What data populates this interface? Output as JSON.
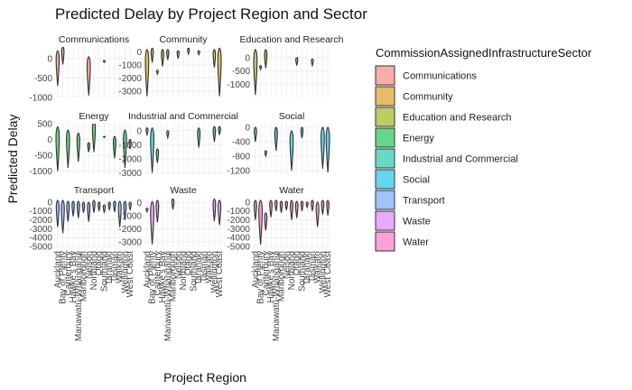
{
  "chart_data": {
    "type": "violin",
    "title": "Predicted Delay by Project Region and Sector",
    "xlabel": "Project Region",
    "ylabel": "Predicted Delay",
    "categories": [
      "Auckland",
      "Bay of Plenty",
      "Canterbury",
      "Hawke's Bay",
      "Manawatū-Whanganui",
      "Marlborough",
      "Nelson",
      "Northland",
      "Otago",
      "Southland",
      "Taranaki",
      "Tasman",
      "Waikato",
      "Wellington",
      "West Coast"
    ],
    "x_ticks_bottom": [
      "Auckland",
      "Bay of Plenty",
      "Canterbury",
      "Hawke's Bay",
      "Manawatū-Whanganui",
      "Marlborough",
      "Nelson",
      "Northland",
      "Otago",
      "Southland",
      "Taranaki",
      "Tasman",
      "Waikato",
      "Wellington",
      "West Coast"
    ],
    "legend": {
      "title": "CommissionAssignedInfrastructureSector",
      "entries": [
        {
          "name": "Communications",
          "color": "#F8766D"
        },
        {
          "name": "Community",
          "color": "#D39200"
        },
        {
          "name": "Education and Research",
          "color": "#93AA00"
        },
        {
          "name": "Energy",
          "color": "#00BA38"
        },
        {
          "name": "Industrial and Commercial",
          "color": "#00C19F"
        },
        {
          "name": "Social",
          "color": "#00B9E3"
        },
        {
          "name": "Transport",
          "color": "#619CFF"
        },
        {
          "name": "Waste",
          "color": "#DB72FB"
        },
        {
          "name": "Water",
          "color": "#FF61C3"
        }
      ]
    },
    "facets": [
      {
        "strip": "Communications",
        "ylim": [
          -1000,
          300
        ],
        "yticks": [
          0,
          -500,
          -1000
        ],
        "violins": [
          {
            "x": 1,
            "max": 200,
            "min": -700
          },
          {
            "x": 2,
            "max": 300,
            "min": -150
          },
          {
            "x": 7,
            "max": 50,
            "min": -950
          },
          {
            "x": 10,
            "max": -50,
            "min": -100
          }
        ]
      },
      {
        "strip": "Community",
        "ylim": [
          -3500,
          400
        ],
        "yticks": [
          0,
          -1000,
          -2000,
          -3000
        ],
        "violins": [
          {
            "x": 1,
            "max": 200,
            "min": -3400
          },
          {
            "x": 2,
            "max": 300,
            "min": -800
          },
          {
            "x": 3,
            "max": -1400,
            "min": -1700
          },
          {
            "x": 4,
            "max": 200,
            "min": -1100
          },
          {
            "x": 5,
            "max": 200,
            "min": -600
          },
          {
            "x": 7,
            "max": 100,
            "min": -500
          },
          {
            "x": 9,
            "max": 300,
            "min": -150
          },
          {
            "x": 11,
            "max": 100,
            "min": -200
          },
          {
            "x": 14,
            "max": 200,
            "min": -1200
          },
          {
            "x": 15,
            "max": 300,
            "min": -3400
          }
        ]
      },
      {
        "strip": "Education and Research",
        "ylim": [
          -1500,
          400
        ],
        "yticks": [
          0,
          -500,
          -1000
        ],
        "violins": [
          {
            "x": 1,
            "max": 300,
            "min": -1400
          },
          {
            "x": 2,
            "max": -300,
            "min": -450
          },
          {
            "x": 3,
            "max": 300,
            "min": -400
          },
          {
            "x": 9,
            "max": 0,
            "min": -300
          },
          {
            "x": 12,
            "max": -50,
            "min": -300
          }
        ]
      },
      {
        "strip": "Energy",
        "ylim": [
          -1100,
          500
        ],
        "yticks": [
          500,
          0,
          -500,
          -1000
        ],
        "violins": [
          {
            "x": 1,
            "max": 400,
            "min": -1000
          },
          {
            "x": 3,
            "max": 300,
            "min": -900
          },
          {
            "x": 5,
            "max": 200,
            "min": -700
          },
          {
            "x": 7,
            "max": -100,
            "min": -400
          },
          {
            "x": 8,
            "max": 600,
            "min": -400
          },
          {
            "x": 10,
            "max": 100,
            "min": 100
          },
          {
            "x": 12,
            "max": 100,
            "min": -600
          },
          {
            "x": 14,
            "max": 300,
            "min": -900
          },
          {
            "x": 15,
            "max": 0,
            "min": -300
          }
        ]
      },
      {
        "strip": "Industrial and Commercial",
        "ylim": [
          -3100,
          500
        ],
        "yticks": [
          0,
          -1000,
          -2000,
          -3000
        ],
        "violins": [
          {
            "x": 1,
            "max": 200,
            "min": -300
          },
          {
            "x": 2,
            "max": 200,
            "min": -3000
          },
          {
            "x": 3,
            "max": -1300,
            "min": -2300
          },
          {
            "x": 5,
            "max": 0,
            "min": -500
          },
          {
            "x": 11,
            "max": 200,
            "min": -1200
          },
          {
            "x": 14,
            "max": 300,
            "min": -800
          },
          {
            "x": 15,
            "max": 300,
            "min": -300
          }
        ]
      },
      {
        "strip": "Social",
        "ylim": [
          -1300,
          100
        ],
        "yticks": [
          0,
          -400,
          -800,
          -1200
        ],
        "violins": [
          {
            "x": 1,
            "max": 0,
            "min": -400
          },
          {
            "x": 3,
            "max": -650,
            "min": -800
          },
          {
            "x": 5,
            "max": 0,
            "min": -650
          },
          {
            "x": 8,
            "max": -100,
            "min": -1200
          },
          {
            "x": 10,
            "max": 0,
            "min": -300
          },
          {
            "x": 14,
            "max": 0,
            "min": -1150
          },
          {
            "x": 15,
            "max": 0,
            "min": -1250
          }
        ]
      },
      {
        "strip": "Transport",
        "ylim": [
          -5200,
          500
        ],
        "yticks": [
          0,
          -1000,
          -2000,
          -3000,
          -4000,
          -5000
        ],
        "violins": [
          {
            "x": 1,
            "max": 200,
            "min": -2800
          },
          {
            "x": 2,
            "max": 200,
            "min": -3500
          },
          {
            "x": 3,
            "max": 100,
            "min": -2200
          },
          {
            "x": 4,
            "max": 100,
            "min": -1600
          },
          {
            "x": 5,
            "max": 100,
            "min": -1800
          },
          {
            "x": 6,
            "max": 0,
            "min": -1200
          },
          {
            "x": 7,
            "max": 0,
            "min": -2200
          },
          {
            "x": 8,
            "max": 200,
            "min": -1200
          },
          {
            "x": 9,
            "max": 0,
            "min": -1000
          },
          {
            "x": 10,
            "max": -300,
            "min": -1200
          },
          {
            "x": 11,
            "max": 0,
            "min": -900
          },
          {
            "x": 12,
            "max": 100,
            "min": -1100
          },
          {
            "x": 13,
            "max": 100,
            "min": -2800
          },
          {
            "x": 14,
            "max": 100,
            "min": -2000
          },
          {
            "x": 15,
            "max": 0,
            "min": -900
          }
        ]
      },
      {
        "strip": "Waste",
        "ylim": [
          -3500,
          400
        ],
        "yticks": [
          0,
          -1000,
          -2000,
          -3000
        ],
        "violins": [
          {
            "x": 1,
            "max": -400,
            "min": -700
          },
          {
            "x": 2,
            "max": 100,
            "min": -3200
          },
          {
            "x": 3,
            "max": 200,
            "min": -1500
          },
          {
            "x": 6,
            "max": 300,
            "min": -500
          },
          {
            "x": 14,
            "max": 300,
            "min": -1400
          },
          {
            "x": 15,
            "max": 200,
            "min": -1700
          }
        ]
      },
      {
        "strip": "Water",
        "ylim": [
          -5200,
          500
        ],
        "yticks": [
          0,
          -1000,
          -2000,
          -3000,
          -4000,
          -5000
        ],
        "violins": [
          {
            "x": 1,
            "max": 200,
            "min": -2000
          },
          {
            "x": 2,
            "max": 200,
            "min": -4800
          },
          {
            "x": 3,
            "max": -1200,
            "min": -3200
          },
          {
            "x": 4,
            "max": 200,
            "min": -1700
          },
          {
            "x": 5,
            "max": 200,
            "min": -1000
          },
          {
            "x": 6,
            "max": 100,
            "min": -1200
          },
          {
            "x": 7,
            "max": 100,
            "min": -900
          },
          {
            "x": 8,
            "max": 200,
            "min": -2000
          },
          {
            "x": 9,
            "max": 100,
            "min": -1800
          },
          {
            "x": 10,
            "max": 100,
            "min": -1000
          },
          {
            "x": 11,
            "max": 0,
            "min": -600
          },
          {
            "x": 12,
            "max": 200,
            "min": -1000
          },
          {
            "x": 13,
            "max": 0,
            "min": -2800
          },
          {
            "x": 14,
            "max": 200,
            "min": -1400
          },
          {
            "x": 15,
            "max": 200,
            "min": -1500
          }
        ]
      }
    ]
  }
}
